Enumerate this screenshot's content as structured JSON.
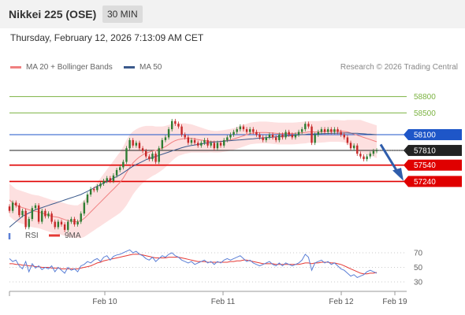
{
  "header": {
    "title": "Nikkei 225 (OSE)",
    "timeframe": "30 MIN"
  },
  "datetime": "Thursday, February 12, 2026 7:13:09 AM CET",
  "legend": {
    "bb_label": "MA 20 + Bollinger Bands",
    "ma50_label": "MA 50",
    "bb_color": "#f08080",
    "ma50_color": "#3b5a8c"
  },
  "credit": "Research © 2026 Trading Central",
  "colors": {
    "up": "#2e7d32",
    "down": "#c62828",
    "band": "#fde0e0",
    "rsi": "#5b7fd6",
    "rsi_ma": "#e53935"
  },
  "chart_data": [
    {
      "type": "candlestick",
      "yrange": [
        56450,
        59200
      ],
      "x_ticks": [
        "Feb 10",
        "Feb 11",
        "Feb 12",
        "Feb 19"
      ],
      "price_levels": [
        {
          "label": "58800",
          "value": 58800,
          "color": "#7cb342",
          "style": "label"
        },
        {
          "label": "58500",
          "value": 58500,
          "color": "#7cb342",
          "style": "label"
        },
        {
          "label": "58100",
          "value": 58100,
          "color": "#1e56c8",
          "style": "box"
        },
        {
          "label": "57810",
          "value": 57810,
          "color": "#222222",
          "style": "box"
        },
        {
          "label": "57540",
          "value": 57540,
          "color": "#e00000",
          "style": "box"
        },
        {
          "label": "57240",
          "value": 57240,
          "color": "#e00000",
          "style": "box"
        }
      ],
      "close": [
        56700,
        56850,
        56800,
        56620,
        56700,
        56400,
        56550,
        56750,
        56800,
        56500,
        56700,
        56600,
        56650,
        56500,
        56400,
        56500,
        56450,
        56350,
        56500,
        56550,
        56450,
        56500,
        56650,
        56850,
        57000,
        57100,
        57080,
        57150,
        57200,
        57250,
        57300,
        57250,
        57350,
        57450,
        57500,
        57600,
        57850,
        58000,
        57900,
        57950,
        57850,
        57800,
        57700,
        57650,
        57750,
        57600,
        57850,
        58000,
        58050,
        58200,
        58350,
        58300,
        58250,
        58100,
        58050,
        57950,
        58000,
        57950,
        57900,
        57950,
        58000,
        57900,
        57950,
        57850,
        57950,
        57900,
        58000,
        58050,
        58100,
        58150,
        58200,
        58250,
        58200,
        58150,
        58200,
        58150,
        58100,
        58050,
        58000,
        58050,
        58100,
        58050,
        58000,
        58100,
        58050,
        58150,
        58100,
        58050,
        58100,
        58150,
        58200,
        58300,
        58250,
        57950,
        58100,
        58150,
        58200,
        58150,
        58200,
        58150,
        58200,
        58150,
        58100,
        58050,
        57950,
        57850,
        57900,
        57750,
        57700,
        57650,
        57700,
        57750,
        57800,
        57810
      ],
      "ma50": [
        56400,
        56450,
        56500,
        56550,
        56600,
        56630,
        56660,
        56690,
        56720,
        56740,
        56760,
        56780,
        56800,
        56820,
        56840,
        56860,
        56880,
        56900,
        56920,
        56940,
        56960,
        56980,
        57000,
        57030,
        57060,
        57090,
        57120,
        57150,
        57180,
        57210,
        57240,
        57270,
        57300,
        57330,
        57360,
        57400,
        57440,
        57480,
        57520,
        57550,
        57580,
        57610,
        57640,
        57660,
        57680,
        57700,
        57720,
        57740,
        57760,
        57780,
        57800,
        57820,
        57840,
        57860,
        57875,
        57890,
        57900,
        57910,
        57920,
        57930,
        57940,
        57950,
        57960,
        57965,
        57970,
        57975,
        57980,
        57985,
        57990,
        57995,
        58000,
        58005,
        58010,
        58015,
        58020,
        58025,
        58030,
        58035,
        58040,
        58045,
        58050,
        58055,
        58060,
        58065,
        58070,
        58075,
        58080,
        58085,
        58090,
        58095,
        58100,
        58105,
        58110,
        58112,
        58114,
        58116,
        58118,
        58120,
        58122,
        58124,
        58126,
        58128,
        58129,
        58130,
        58130,
        58128,
        58126,
        58124,
        58120,
        58116,
        58112,
        58108,
        58104,
        58100
      ],
      "ma20": [
        56900,
        56850,
        56800,
        56780,
        56760,
        56740,
        56720,
        56700,
        56690,
        56680,
        56660,
        56640,
        56620,
        56600,
        56590,
        56580,
        56560,
        56540,
        56520,
        56510,
        56500,
        56500,
        56520,
        56560,
        56620,
        56680,
        56740,
        56800,
        56860,
        56920,
        56980,
        57040,
        57100,
        57160,
        57220,
        57300,
        57400,
        57500,
        57580,
        57640,
        57690,
        57730,
        57760,
        57780,
        57800,
        57810,
        57830,
        57850,
        57880,
        57920,
        57960,
        57990,
        58010,
        58020,
        58030,
        58030,
        58030,
        58020,
        58010,
        58000,
        57990,
        57980,
        57975,
        57970,
        57970,
        57975,
        57985,
        57995,
        58005,
        58020,
        58040,
        58060,
        58080,
        58100,
        58120,
        58130,
        58135,
        58140,
        58140,
        58140,
        58135,
        58130,
        58125,
        58120,
        58120,
        58120,
        58120,
        58120,
        58125,
        58130,
        58135,
        58140,
        58150,
        58150,
        58150,
        58150,
        58155,
        58160,
        58165,
        58170,
        58170,
        58170,
        58165,
        58160,
        58150,
        58130,
        58110,
        58090,
        58070,
        58050,
        58030,
        58010,
        57990,
        57970
      ],
      "bb_width": [
        300,
        300,
        300,
        300,
        300,
        300,
        300,
        300,
        300,
        300,
        300,
        300,
        300,
        300,
        300,
        300,
        300,
        300,
        300,
        300,
        300,
        300,
        320,
        340,
        360,
        380,
        400,
        420,
        440,
        460,
        480,
        500,
        520,
        540,
        560,
        580,
        600,
        600,
        580,
        560,
        540,
        520,
        500,
        480,
        460,
        440,
        420,
        400,
        380,
        360,
        340,
        320,
        300,
        290,
        280,
        270,
        260,
        250,
        240,
        230,
        220,
        210,
        200,
        200,
        200,
        200,
        200,
        200,
        200,
        200,
        200,
        200,
        200,
        200,
        200,
        200,
        200,
        200,
        200,
        200,
        200,
        200,
        200,
        200,
        200,
        200,
        200,
        200,
        200,
        200,
        200,
        200,
        200,
        200,
        200,
        200,
        200,
        200,
        200,
        200,
        200,
        200,
        200,
        200,
        220,
        240,
        260,
        280,
        300,
        300,
        300,
        300,
        300,
        300
      ]
    },
    {
      "type": "line",
      "name": "RSI",
      "ma_label": "9MA",
      "ylim": [
        20,
        80
      ],
      "y_ticks": [
        70,
        50,
        30
      ],
      "rsi": [
        62,
        58,
        60,
        52,
        48,
        58,
        44,
        55,
        49,
        52,
        47,
        50,
        48,
        52,
        44,
        50,
        46,
        42,
        50,
        46,
        48,
        44,
        52,
        54,
        58,
        56,
        60,
        62,
        58,
        64,
        66,
        60,
        65,
        67,
        68,
        70,
        72,
        74,
        70,
        72,
        68,
        66,
        62,
        60,
        64,
        58,
        62,
        66,
        64,
        68,
        70,
        66,
        64,
        60,
        58,
        56,
        58,
        54,
        56,
        58,
        60,
        56,
        58,
        54,
        58,
        56,
        60,
        62,
        60,
        62,
        64,
        66,
        62,
        58,
        60,
        56,
        54,
        52,
        54,
        56,
        58,
        54,
        52,
        56,
        52,
        56,
        54,
        52,
        54,
        56,
        60,
        68,
        64,
        46,
        56,
        58,
        60,
        56,
        58,
        54,
        56,
        52,
        48,
        46,
        42,
        38,
        40,
        36,
        38,
        40,
        44,
        46,
        44,
        42
      ],
      "rsi_ma": [
        55,
        55,
        54,
        54,
        53,
        53,
        52,
        52,
        51,
        51,
        50,
        50,
        50,
        49,
        49,
        49,
        48,
        48,
        48,
        48,
        48,
        48,
        49,
        50,
        51,
        52,
        54,
        56,
        57,
        59,
        60,
        61,
        62,
        63,
        64,
        65,
        66,
        67,
        68,
        68,
        68,
        67,
        66,
        65,
        64,
        63,
        63,
        63,
        63,
        64,
        64,
        64,
        64,
        63,
        62,
        61,
        60,
        59,
        58,
        58,
        58,
        57,
        57,
        57,
        57,
        57,
        57,
        57,
        58,
        58,
        59,
        59,
        60,
        60,
        59,
        58,
        57,
        56,
        55,
        55,
        55,
        55,
        54,
        54,
        54,
        54,
        54,
        54,
        54,
        54,
        55,
        56,
        56,
        55,
        56,
        56,
        57,
        57,
        57,
        56,
        56,
        55,
        54,
        52,
        50,
        48,
        46,
        44,
        42,
        41,
        41,
        42,
        42,
        43
      ]
    }
  ]
}
